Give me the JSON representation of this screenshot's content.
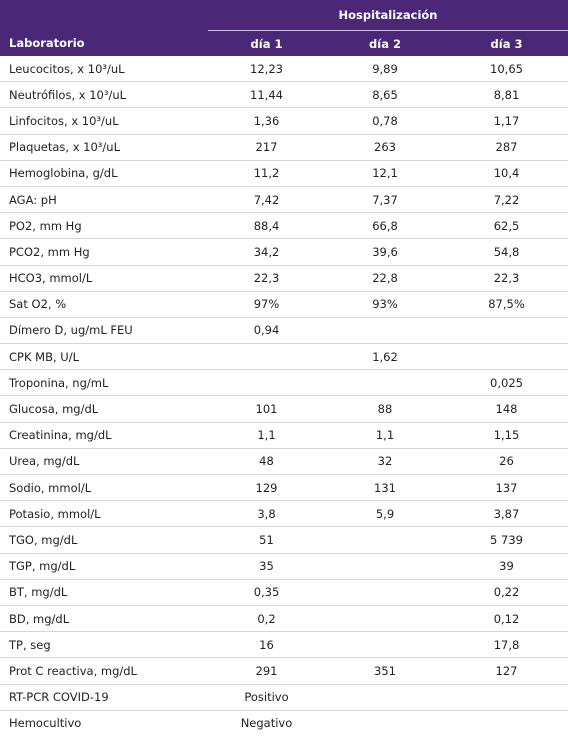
{
  "table": {
    "group_header": "Hospitalización",
    "columns": [
      "Laboratorio",
      "día 1",
      "día 2",
      "día 3"
    ],
    "rows": [
      [
        "Leucocitos, x 10³/uL",
        "12,23",
        "9,89",
        "10,65"
      ],
      [
        "Neutrófilos, x 10³/uL",
        "11,44",
        "8,65",
        "8,81"
      ],
      [
        "Linfocitos, x 10³/uL",
        "1,36",
        "0,78",
        "1,17"
      ],
      [
        "Plaquetas, x 10³/uL",
        "217",
        "263",
        "287"
      ],
      [
        "Hemoglobina, g/dL",
        "11,2",
        "12,1",
        "10,4"
      ],
      [
        "AGA: pH",
        "7,42",
        "7,37",
        "7,22"
      ],
      [
        "PO2, mm Hg",
        "88,4",
        "66,8",
        "62,5"
      ],
      [
        "PCO2, mm Hg",
        "34,2",
        "39,6",
        "54,8"
      ],
      [
        "HCO3, mmol/L",
        "22,3",
        "22,8",
        "22,3"
      ],
      [
        "Sat O2, %",
        "97%",
        "93%",
        "87,5%"
      ],
      [
        "Dímero D, ug/mL FEU",
        "0,94",
        null,
        null
      ],
      [
        "CPK MB, U/L",
        null,
        "1,62",
        null
      ],
      [
        "Troponina, ng/mL",
        null,
        null,
        "0,025"
      ],
      [
        "Glucosa, mg/dL",
        "101",
        "88",
        "148"
      ],
      [
        "Creatinina, mg/dL",
        "1,1",
        "1,1",
        "1,15"
      ],
      [
        "Urea, mg/dL",
        "48",
        "32",
        "26"
      ],
      [
        "Sodio, mmol/L",
        "129",
        "131",
        "137"
      ],
      [
        "Potasio, mmol/L",
        "3,8",
        "5,9",
        "3,87"
      ],
      [
        "TGO, mg/dL",
        "51",
        null,
        "5 739"
      ],
      [
        "TGP, mg/dL",
        "35",
        null,
        "39"
      ],
      [
        "BT, mg/dL",
        "0,35",
        null,
        "0,22"
      ],
      [
        "BD, mg/dL",
        "0,2",
        null,
        "0,12"
      ],
      [
        "TP, seg",
        "16",
        null,
        "17,8"
      ],
      [
        "Prot C reactiva, mg/dL",
        "291",
        "351",
        "127"
      ],
      [
        "RT-PCR COVID-19",
        "Positivo",
        null,
        null
      ],
      [
        "Hemocultivo",
        "Negativo",
        null,
        null
      ]
    ]
  }
}
